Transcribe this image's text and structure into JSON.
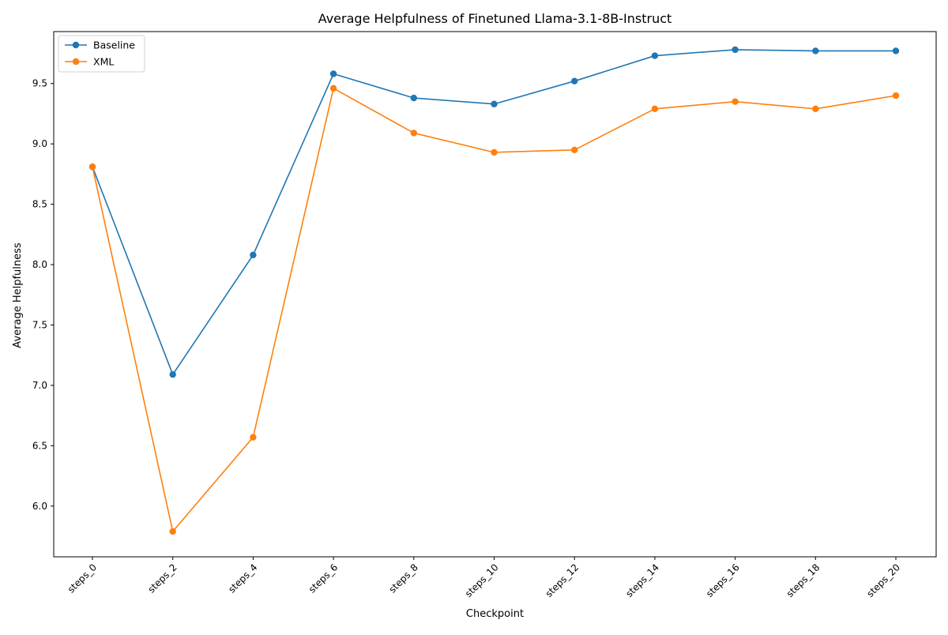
{
  "chart_data": {
    "type": "line",
    "title": "Average Helpfulness of Finetuned Llama-3.1-8B-Instruct",
    "xlabel": "Checkpoint",
    "ylabel": "Average Helpfulness",
    "categories": [
      "steps_0",
      "steps_2",
      "steps_4",
      "steps_6",
      "steps_8",
      "steps_10",
      "steps_12",
      "steps_14",
      "steps_16",
      "steps_18",
      "steps_20"
    ],
    "ylim": [
      5.58,
      9.93
    ],
    "yticks": [
      "6.0",
      "6.5",
      "7.0",
      "7.5",
      "8.0",
      "8.5",
      "9.0",
      "9.5"
    ],
    "ytick_values": [
      6.0,
      6.5,
      7.0,
      7.5,
      8.0,
      8.5,
      9.0,
      9.5
    ],
    "grid": false,
    "legend_position": "top-left",
    "series": [
      {
        "name": "Baseline",
        "color": "#1f77b4",
        "marker": "circle",
        "values": [
          8.81,
          7.09,
          8.08,
          9.58,
          9.38,
          9.33,
          9.52,
          9.73,
          9.78,
          9.77,
          9.77
        ]
      },
      {
        "name": "XML",
        "color": "#ff7f0e",
        "marker": "circle",
        "values": [
          8.81,
          5.79,
          6.57,
          9.46,
          9.09,
          8.93,
          8.95,
          9.29,
          9.35,
          9.29,
          9.4
        ]
      }
    ]
  }
}
